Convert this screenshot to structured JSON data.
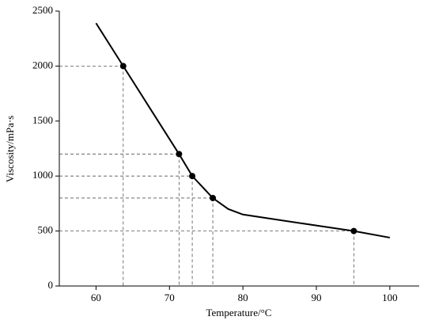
{
  "chart_data": {
    "type": "line",
    "x_label": "Temperature/°C",
    "y_label": "Viscosity/mPa·s",
    "x": [
      60,
      63.7,
      67.5,
      71.3,
      73.1,
      75.9,
      78,
      80,
      85,
      90,
      95.1,
      100
    ],
    "values": [
      2390,
      2000,
      1600,
      1200,
      1000,
      800,
      700,
      650,
      600,
      550,
      500,
      440
    ],
    "color": "#000000",
    "markers": {
      "x": [
        63.7,
        71.3,
        73.1,
        75.9,
        95.1
      ],
      "values": [
        2000,
        1200,
        1000,
        800,
        500
      ]
    },
    "xlim": [
      55,
      104
    ],
    "xticks": [
      60,
      70,
      80,
      90,
      100
    ],
    "ylim": [
      0,
      2500
    ],
    "yticks": [
      0,
      500,
      1000,
      1500,
      2000,
      2500
    ],
    "guides": true
  }
}
